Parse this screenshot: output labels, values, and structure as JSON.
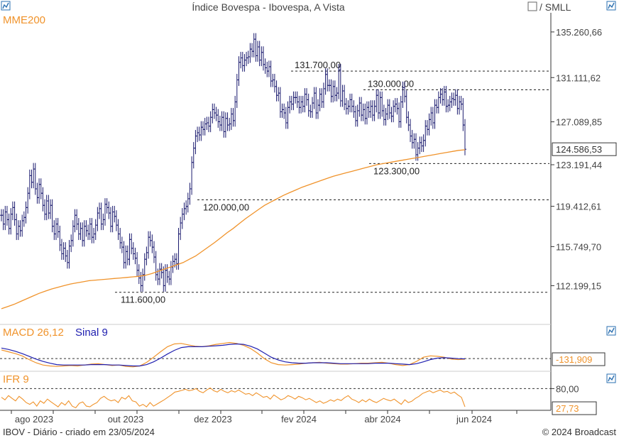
{
  "header": {
    "title": "Índice Bovespa - Ibovespa, A Vista",
    "toggle_label": "/ SMLL"
  },
  "footer": {
    "left": "IBOV - Diário - criado em 23/05/2024",
    "right": "© 2024 Broadcast"
  },
  "colors": {
    "price": "#1a1a6e",
    "mme": "#f0932b",
    "macd": "#f0932b",
    "signal": "#2020b0",
    "ifr": "#f0932b",
    "accent_icon": "#2a6fb0"
  },
  "icons": {
    "menu": "chart-menu-icon",
    "checkbox": "checkbox-icon"
  },
  "chart_data": [
    {
      "type": "line",
      "panel": "price",
      "indicator_label": "MME200",
      "x_ticks": [
        "ago 2023",
        "out 2023",
        "dez 2023",
        "fev 2024",
        "abr 2024",
        "jun 2024"
      ],
      "y_ticks": [
        "135.260,66",
        "131.111,62",
        "127.089,85",
        "123.191,44",
        "119.412,61",
        "115.749,70",
        "112.199,15"
      ],
      "last_price_label": "124.586,53",
      "ylim": [
        109000,
        137000
      ],
      "levels": [
        {
          "value": 131700,
          "label": "131.700,00"
        },
        {
          "value": 130000,
          "label": "130.000,00"
        },
        {
          "value": 123300,
          "label": "123.300,00"
        },
        {
          "value": 120000,
          "label": "120.000,00"
        },
        {
          "value": 111600,
          "label": "111.600,00"
        }
      ],
      "series": [
        {
          "kind": "price",
          "values": [
            118600,
            117800,
            118900,
            118200,
            117400,
            118700,
            119300,
            118200,
            116900,
            117600,
            117200,
            118100,
            118400,
            119300,
            120600,
            122200,
            121600,
            122800,
            121000,
            120200,
            121400,
            120600,
            119500,
            118700,
            119900,
            118800,
            119500,
            117600,
            116900,
            117800,
            117100,
            115900,
            115100,
            115600,
            114900,
            114300,
            115800,
            116300,
            117600,
            118600,
            117800,
            116900,
            117400,
            116300,
            117600,
            117200,
            116900,
            117800,
            116600,
            116900,
            117700,
            118800,
            119200,
            117800,
            118200,
            119600,
            119300,
            118800,
            117600,
            118900,
            118500,
            117700,
            116900,
            116100,
            115700,
            114300,
            115300,
            114600,
            116400,
            115600,
            115100,
            114700,
            113600,
            112900,
            112200,
            113200,
            114600,
            115200,
            116600,
            116300,
            115700,
            114800,
            113200,
            112800,
            113700,
            113400,
            112200,
            113600,
            113000,
            112800,
            113900,
            114400,
            114600,
            114200,
            116900,
            117900,
            118700,
            119200,
            119400,
            120100,
            121000,
            123400,
            124700,
            125800,
            126100,
            125900,
            126600,
            126400,
            126900,
            127000,
            126700,
            127500,
            128200,
            127900,
            127700,
            127100,
            126800,
            127500,
            126200,
            127400,
            126800,
            126900,
            127800,
            127200,
            128900,
            130900,
            132500,
            132900,
            132200,
            132700,
            132900,
            133000,
            133700,
            133500,
            134600,
            133100,
            133900,
            132700,
            133400,
            132300,
            132000,
            131700,
            132100,
            130800,
            130900,
            130300,
            129500,
            129700,
            128000,
            128200,
            127900,
            127000,
            128400,
            128900,
            128700,
            129300,
            129300,
            128900,
            128400,
            128900,
            128500,
            129600,
            129100,
            128100,
            128000,
            128800,
            129700,
            127900,
            128600,
            129600,
            128900,
            130100,
            131400,
            130400,
            130400,
            129400,
            130300,
            129500,
            129700,
            131800,
            129000,
            129900,
            128700,
            128300,
            128500,
            129100,
            128500,
            128000,
            127200,
            128100,
            128800,
            127700,
            128200,
            127400,
            128400,
            128000,
            128500,
            127700,
            128500,
            129500,
            127900,
            129300,
            128100,
            127300,
            127800,
            128600,
            127900,
            127600,
            128500,
            128700,
            128300,
            127100,
            128900,
            130200,
            129400,
            127500,
            126800,
            125800,
            125200,
            125500,
            124100,
            124700,
            125200,
            124900,
            125400,
            126700,
            126400,
            127300,
            127900,
            127000,
            128600,
            128400,
            129300,
            129600,
            129100,
            129800,
            128500,
            128600,
            128900,
            129200,
            129100,
            129500,
            128300,
            128900,
            128700,
            126800,
            124600
          ]
        },
        {
          "kind": "mme",
          "name": "MME200",
          "values": [
            110100,
            110300,
            110500,
            110750,
            111000,
            111250,
            111500,
            111700,
            111900,
            112050,
            112200,
            112350,
            112450,
            112550,
            112650,
            112700,
            112750,
            112800,
            112850,
            112900,
            112950,
            113000,
            113050,
            113150,
            113300,
            113500,
            113700,
            113900,
            114100,
            114300,
            114600,
            114900,
            115300,
            115700,
            116100,
            116550,
            117000,
            117400,
            117850,
            118300,
            118700,
            119100,
            119500,
            119800,
            120100,
            120400,
            120650,
            120900,
            121150,
            121350,
            121550,
            121750,
            121950,
            122150,
            122300,
            122450,
            122600,
            122750,
            122900,
            123050,
            123200,
            123300,
            123400,
            123500,
            123600,
            123700,
            123800,
            123900,
            124000,
            124100,
            124200,
            124300,
            124400,
            124500,
            124550
          ]
        }
      ]
    },
    {
      "type": "line",
      "panel": "macd",
      "title": "MACD 26,12",
      "signal_title": "Sinal 9",
      "value_label": "-131,909",
      "series": [
        {
          "kind": "macd",
          "values": [
            1900,
            1500,
            1100,
            600,
            -200,
            -900,
            -1400,
            -1600,
            -1700,
            -1600,
            -1500,
            -1600,
            -1400,
            -1200,
            -1100,
            -1300,
            -1500,
            -1400,
            -1700,
            -1800,
            -1600,
            -800,
            300,
            1500,
            2600,
            3200,
            3300,
            3000,
            2700,
            2600,
            2800,
            3100,
            3300,
            3500,
            3300,
            2900,
            2200,
            1200,
            0,
            -900,
            -1300,
            -1400,
            -1300,
            -1200,
            -1000,
            -900,
            -800,
            -1000,
            -1100,
            -1200,
            -1200,
            -1100,
            -1000,
            -1000,
            -900,
            -800,
            -1000,
            -1300,
            -1500,
            -1300,
            -600,
            300,
            600,
            500,
            300,
            -100,
            -200,
            -131
          ]
        },
        {
          "kind": "signal",
          "values": [
            2300,
            2000,
            1600,
            1100,
            500,
            -100,
            -600,
            -1000,
            -1300,
            -1400,
            -1400,
            -1400,
            -1400,
            -1300,
            -1300,
            -1300,
            -1400,
            -1400,
            -1500,
            -1600,
            -1600,
            -1300,
            -700,
            100,
            1000,
            1800,
            2400,
            2600,
            2600,
            2600,
            2700,
            2800,
            2900,
            3100,
            3200,
            3100,
            2700,
            2100,
            1200,
            300,
            -300,
            -700,
            -900,
            -1000,
            -1000,
            -900,
            -900,
            -900,
            -1000,
            -1100,
            -1100,
            -1100,
            -1100,
            -1100,
            -1000,
            -1000,
            -1000,
            -1100,
            -1200,
            -1300,
            -1100,
            -700,
            -200,
            100,
            200,
            100,
            0,
            -50
          ]
        }
      ],
      "zero_line": 0,
      "ylim": [
        -2600,
        4200
      ]
    },
    {
      "type": "line",
      "panel": "ifr",
      "title": "IFR 9",
      "y_ticks": [
        "80,00"
      ],
      "value_label": "27,73",
      "reference_level": 80,
      "ylim": [
        20,
        95
      ],
      "series": [
        {
          "kind": "ifr",
          "values": [
            55,
            48,
            60,
            52,
            45,
            58,
            50,
            40,
            35,
            42,
            30,
            45,
            38,
            50,
            42,
            35,
            28,
            40,
            33,
            45,
            30,
            25,
            38,
            42,
            30,
            28,
            35,
            40,
            52,
            58,
            50,
            45,
            48,
            40,
            55,
            50,
            60,
            45,
            42,
            30,
            35,
            28,
            40,
            30,
            36,
            42,
            48,
            55,
            62,
            70,
            72,
            75,
            78,
            74,
            76,
            80,
            72,
            68,
            76,
            82,
            74,
            70,
            78,
            72,
            68,
            74,
            70,
            76,
            70,
            64,
            66,
            60,
            68,
            62,
            55,
            58,
            50,
            62,
            55,
            48,
            52,
            60,
            56,
            50,
            58,
            54,
            48,
            52,
            46,
            40,
            45,
            38,
            42,
            48,
            44,
            50,
            46,
            54,
            60,
            50,
            46,
            40,
            48,
            42,
            50,
            44,
            40,
            46,
            52,
            48,
            45,
            50,
            42,
            35,
            48,
            40,
            44,
            52,
            58,
            66,
            70,
            74,
            68,
            72,
            76,
            70,
            72,
            66,
            70,
            62,
            55,
            28
          ]
        }
      ]
    }
  ]
}
